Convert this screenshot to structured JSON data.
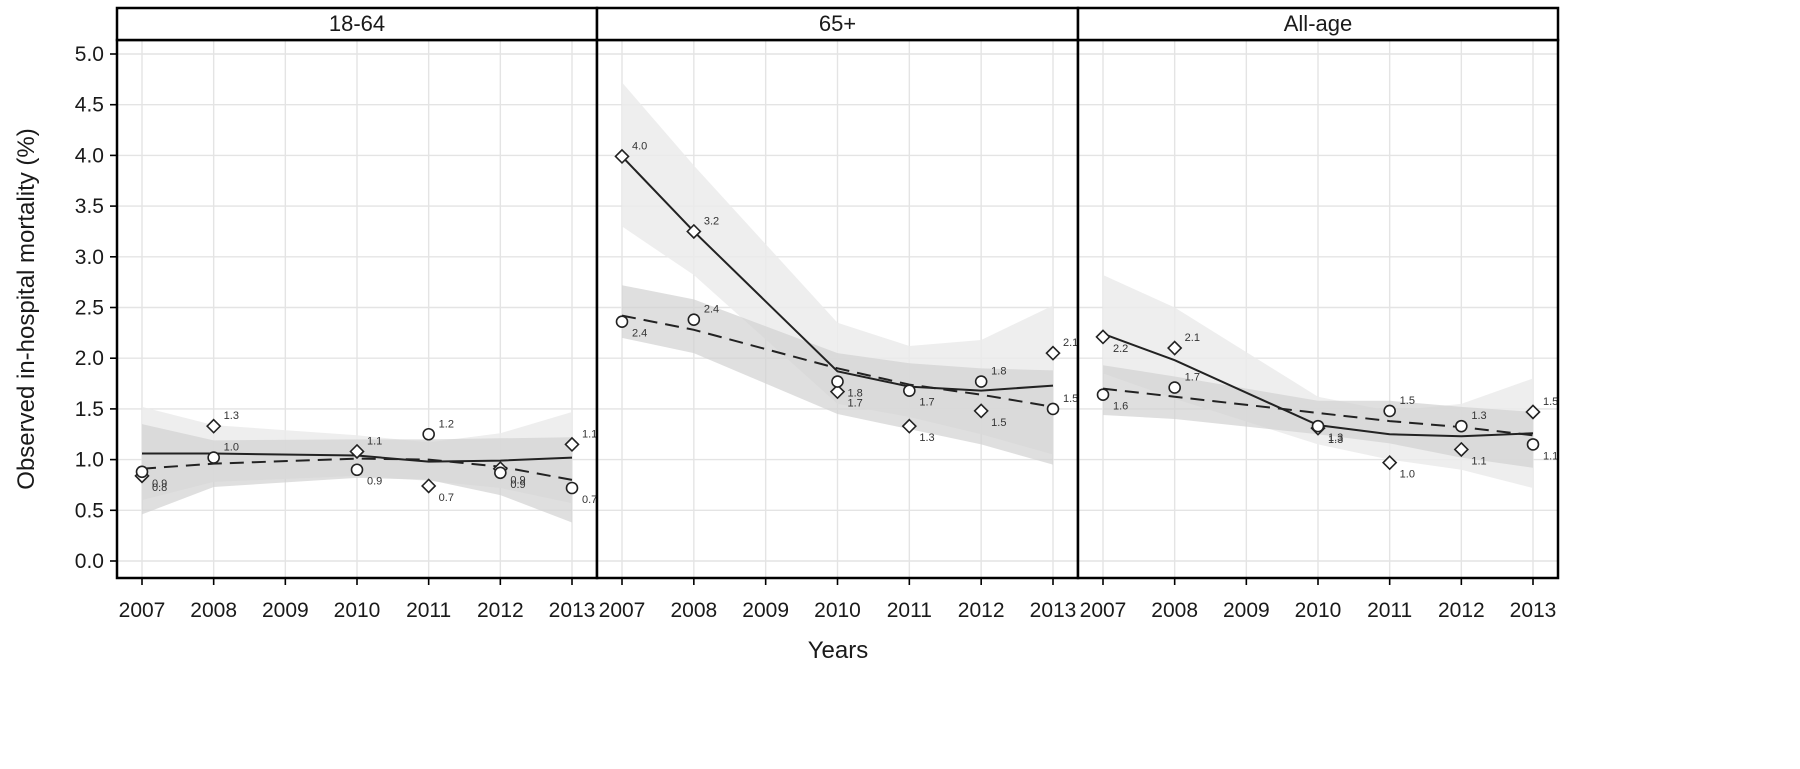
{
  "chart_data": {
    "type": "line",
    "xlabel": "Years",
    "ylabel": "Observed in-hospital mortality (%)",
    "ylim": [
      0.0,
      5.0
    ],
    "yticks": [
      "0.0",
      "0.5",
      "1.0",
      "1.5",
      "2.0",
      "2.5",
      "3.0",
      "3.5",
      "4.0",
      "4.5",
      "5.0"
    ],
    "xlim": [
      2007,
      2013
    ],
    "xticks": [
      "2007",
      "2008",
      "2009",
      "2010",
      "2011",
      "2012",
      "2013"
    ],
    "grid": true,
    "colors": {
      "band_outer": "#ebebeb",
      "band_inner": "#d2d2d2",
      "grid": "#e4e4e4",
      "line": "#222222",
      "frame": "#000000"
    },
    "panels": [
      {
        "name": "18-64",
        "series": [
          {
            "marker": "diamond",
            "line": "solid",
            "x": [
              2007,
              2008,
              2010,
              2011,
              2012,
              2013
            ],
            "values": [
              0.84,
              1.33,
              1.08,
              0.74,
              0.91,
              1.15
            ],
            "labels": [
              "0.8",
              "1.3",
              "1.1",
              "0.7",
              "0.9",
              "1.1"
            ],
            "fit": [
              1.06,
              1.06,
              1.04,
              0.98,
              0.99,
              1.02
            ],
            "band_lower": [
              0.6,
              0.78,
              0.84,
              0.79,
              0.72,
              0.57
            ],
            "band_upper": [
              1.52,
              1.34,
              1.24,
              1.17,
              1.26,
              1.47
            ],
            "band_color": "band_outer"
          },
          {
            "marker": "circle",
            "line": "dashed",
            "x": [
              2007,
              2008,
              2010,
              2011,
              2012,
              2013
            ],
            "values": [
              0.88,
              1.02,
              0.9,
              1.25,
              0.87,
              0.72
            ],
            "labels": [
              "0.9",
              "1.0",
              "0.9",
              "1.2",
              "0.9",
              "0.7"
            ],
            "fit": [
              0.91,
              0.96,
              1.01,
              1.0,
              0.93,
              0.8
            ],
            "band_lower": [
              0.46,
              0.73,
              0.82,
              0.8,
              0.65,
              0.38
            ],
            "band_upper": [
              1.35,
              1.19,
              1.2,
              1.2,
              1.21,
              1.22
            ],
            "band_color": "band_inner"
          }
        ]
      },
      {
        "name": "65+",
        "series": [
          {
            "marker": "diamond",
            "line": "solid",
            "x": [
              2007,
              2008,
              2010,
              2011,
              2012,
              2013
            ],
            "values": [
              3.99,
              3.25,
              1.67,
              1.33,
              1.48,
              2.05
            ],
            "labels": [
              "4.0",
              "3.2",
              "1.7",
              "1.3",
              "1.5",
              "2.1"
            ],
            "fit": [
              3.99,
              3.25,
              1.87,
              1.72,
              1.68,
              1.73
            ],
            "band_lower": [
              3.3,
              2.82,
              1.55,
              1.42,
              1.25,
              1.05
            ],
            "band_upper": [
              4.72,
              3.9,
              2.35,
              2.12,
              2.18,
              2.52
            ],
            "band_color": "band_outer"
          },
          {
            "marker": "circle",
            "line": "dashed",
            "x": [
              2007,
              2008,
              2010,
              2011,
              2012,
              2013
            ],
            "values": [
              2.36,
              2.38,
              1.77,
              1.68,
              1.77,
              1.5
            ],
            "labels": [
              "2.4",
              "2.4",
              "1.8",
              "1.7",
              "1.8",
              "1.5"
            ],
            "fit": [
              2.42,
              2.28,
              1.9,
              1.74,
              1.64,
              1.52
            ],
            "band_lower": [
              2.2,
              2.05,
              1.45,
              1.3,
              1.15,
              0.95
            ],
            "band_upper": [
              2.72,
              2.58,
              2.05,
              1.95,
              1.9,
              1.88
            ],
            "band_color": "band_inner"
          }
        ]
      },
      {
        "name": "All-age",
        "series": [
          {
            "marker": "diamond",
            "line": "solid",
            "x": [
              2007,
              2008,
              2010,
              2011,
              2012,
              2013
            ],
            "values": [
              2.21,
              2.1,
              1.31,
              0.97,
              1.1,
              1.47
            ],
            "labels": [
              "2.2",
              "2.1",
              "1.3",
              "1.0",
              "1.1",
              "1.5"
            ],
            "fit": [
              2.24,
              1.98,
              1.34,
              1.25,
              1.23,
              1.26
            ],
            "band_lower": [
              1.85,
              1.6,
              1.15,
              1.0,
              0.9,
              0.72
            ],
            "band_upper": [
              2.82,
              2.5,
              1.62,
              1.48,
              1.55,
              1.8
            ],
            "band_color": "band_outer"
          },
          {
            "marker": "circle",
            "line": "dashed",
            "x": [
              2007,
              2008,
              2010,
              2011,
              2012,
              2013
            ],
            "values": [
              1.64,
              1.71,
              1.33,
              1.48,
              1.33,
              1.15
            ],
            "labels": [
              "1.6",
              "1.7",
              "1.3",
              "1.5",
              "1.3",
              "1.1"
            ],
            "fit": [
              1.7,
              1.62,
              1.46,
              1.38,
              1.32,
              1.24
            ],
            "band_lower": [
              1.44,
              1.4,
              1.25,
              1.16,
              1.02,
              0.92
            ],
            "band_upper": [
              1.93,
              1.82,
              1.58,
              1.58,
              1.52,
              1.47
            ],
            "band_color": "band_inner"
          }
        ]
      }
    ]
  }
}
